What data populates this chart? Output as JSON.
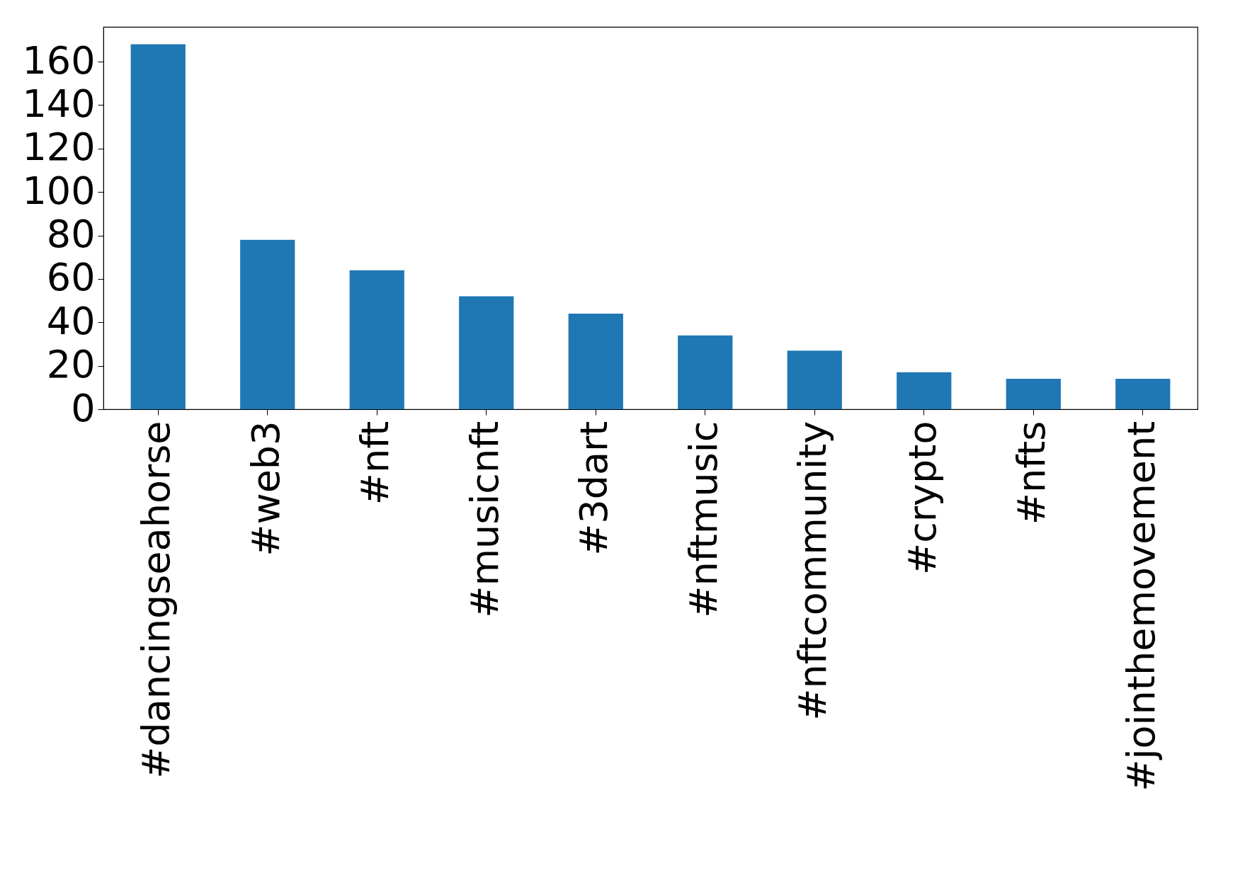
{
  "chart_data": {
    "type": "bar",
    "categories": [
      "#dancingseahorse",
      "#web3",
      "#nft",
      "#musicnft",
      "#3dart",
      "#nftmusic",
      "#nftcommunity",
      "#crypto",
      "#nfts",
      "#jointhemovement"
    ],
    "values": [
      168,
      78,
      64,
      52,
      44,
      34,
      27,
      17,
      14,
      14
    ],
    "color": "#1f77b4",
    "ylim": [
      0,
      176
    ],
    "yticks": [
      0,
      20,
      40,
      60,
      80,
      100,
      120,
      140,
      160
    ],
    "grid": false
  }
}
